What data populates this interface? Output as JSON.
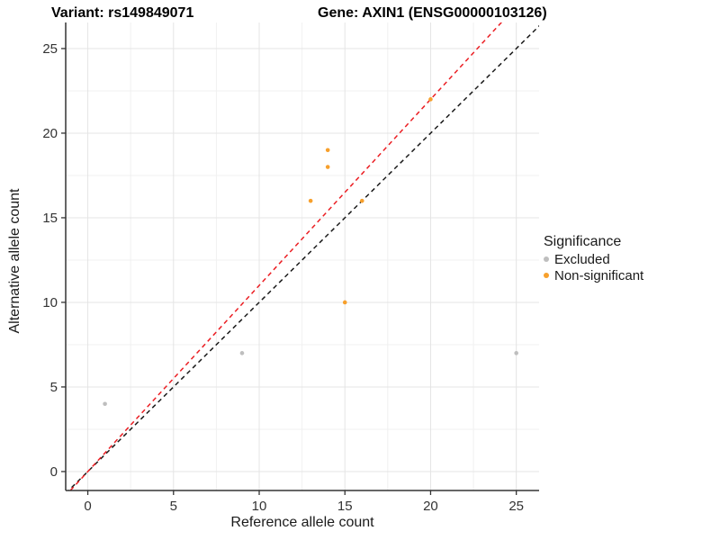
{
  "figure": {
    "title_left": "Variant: rs149849071",
    "title_right": "Gene: AXIN1 (ENSG00000103126)"
  },
  "chart_data": {
    "type": "scatter",
    "title": "Variant: rs149849071 | Gene: AXIN1 (ENSG00000103126)",
    "xlabel": "Reference allele count",
    "ylabel": "Alternative allele count",
    "xlim": [
      -1.29,
      26.33
    ],
    "ylim": [
      -1.12,
      26.54
    ],
    "xticks": [
      0,
      5,
      10,
      15,
      20,
      25
    ],
    "yticks": [
      0,
      5,
      10,
      15,
      20,
      25
    ],
    "minor_gridlines_x": [
      2.5,
      7.5,
      12.5,
      17.5,
      22.5
    ],
    "minor_gridlines_y": [
      2.5,
      7.5,
      12.5,
      17.5,
      22.5
    ],
    "grid": true,
    "legend_position": "right",
    "series": [
      {
        "name": "Excluded",
        "color": "#BEBEBE",
        "points": [
          [
            1,
            4
          ],
          [
            9,
            7
          ],
          [
            25,
            7
          ]
        ]
      },
      {
        "name": "Non-significant",
        "color": "#F7A02C",
        "points": [
          [
            13,
            16
          ],
          [
            14,
            18
          ],
          [
            14,
            19
          ],
          [
            15,
            10
          ],
          [
            16,
            16
          ],
          [
            20,
            22
          ]
        ]
      }
    ],
    "reference_lines": [
      {
        "name": "identity-line",
        "color": "#1A1A1A",
        "slope": 1,
        "intercept": 0,
        "dashed": true
      },
      {
        "name": "alt-ref-ratio-line",
        "color": "#EB1E23",
        "slope": 1.1,
        "intercept": 0,
        "dashed": true
      }
    ],
    "legend": {
      "title": "Significance",
      "items": [
        {
          "label": "Excluded",
          "color": "#BEBEBE"
        },
        {
          "label": "Non-significant",
          "color": "#F7A02C"
        }
      ]
    }
  }
}
